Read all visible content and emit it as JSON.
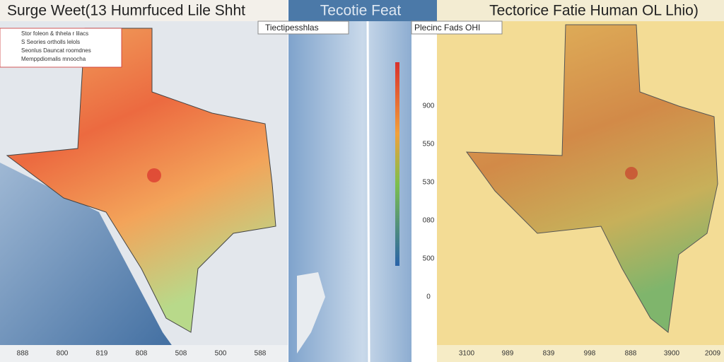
{
  "left_panel": {
    "title": "Surge Weet(13 Humrfuced Lile Shht",
    "legend": [
      "Stor foleon & thhela r lilacs",
      "S Seories ortholls lelols",
      "Seonlus Dauncat roomdnes",
      "Memppdiomalis mnoocha"
    ],
    "bottom_labels": [
      "888",
      "800",
      "819",
      "808",
      "508",
      "500",
      "588"
    ]
  },
  "middle_panel": {
    "title": "Tecotie Feat",
    "label": "Tiectipesshlas"
  },
  "right_panel": {
    "title": "Tectorice Fatie Human OL Lhio)",
    "label": "Plecinc Fads OHI",
    "side_labels": [
      "900",
      "550",
      "530",
      "080",
      "500",
      "0"
    ],
    "bottom_labels": [
      "3100",
      "989",
      "839",
      "998",
      "888",
      "3900",
      "2009"
    ]
  }
}
